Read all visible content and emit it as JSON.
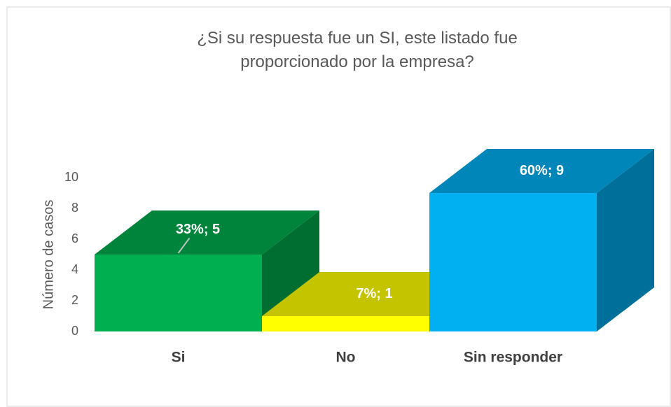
{
  "chart_data": {
    "type": "bar3d",
    "title": "¿Si su respuesta fue un SI, este listado fue proporcionado por la empresa?",
    "y_label": "Número de casos",
    "categories": [
      "Si",
      "No",
      "Sin responder"
    ],
    "values": [
      5,
      1,
      9
    ],
    "value_labels": [
      "33%; 5",
      "7%; 1",
      "60%; 9"
    ],
    "colors": [
      "#00b050",
      "#ffff00",
      "#00b0f0"
    ],
    "top_colors": [
      "#00843c",
      "#c4c400",
      "#0086b8"
    ],
    "side_colors": [
      "#006e30",
      "#a8a800",
      "#006f99"
    ],
    "ylim": [
      0,
      10
    ],
    "yticks": [
      0,
      2,
      4,
      6,
      8,
      10
    ]
  }
}
